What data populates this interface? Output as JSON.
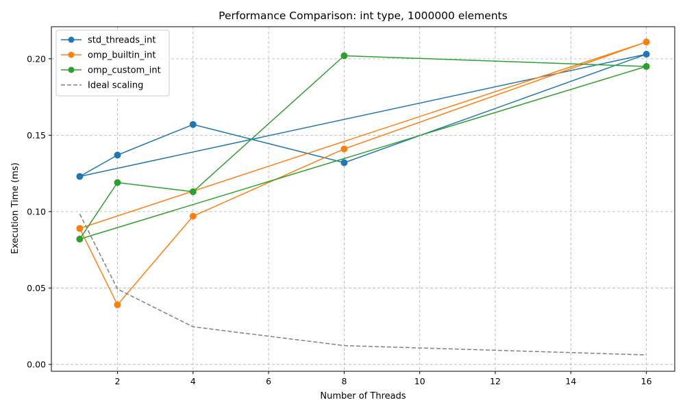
{
  "chart_data": {
    "type": "line",
    "title": "Performance Comparison: int type, 1000000 elements",
    "xlabel": "Number of Threads",
    "ylabel": "Execution Time (ms)",
    "xlim": [
      0.25,
      16.75
    ],
    "ylim": [
      -0.0045,
      0.221
    ],
    "xticks": [
      2,
      4,
      6,
      8,
      10,
      12,
      14,
      16
    ],
    "yticks": [
      0.0,
      0.05,
      0.1,
      0.15,
      0.2
    ],
    "ytick_labels": [
      "0.00",
      "0.05",
      "0.10",
      "0.15",
      "0.20"
    ],
    "grid": true,
    "legend_position": "upper-left",
    "series": [
      {
        "name": "std_threads_int",
        "color": "#1f77b4",
        "style": "solid",
        "marker": "circle",
        "x": [
          1,
          2,
          4,
          8,
          16,
          1,
          2,
          4,
          8,
          16
        ],
        "y": [
          0.123,
          0.137,
          0.157,
          0.132,
          0.203,
          0.123,
          0.137,
          0.157,
          0.132,
          0.203
        ]
      },
      {
        "name": "omp_builtin_int",
        "color": "#ff7f0e",
        "style": "solid",
        "marker": "circle",
        "x": [
          1,
          2,
          4,
          8,
          16,
          1,
          2,
          4,
          8,
          16
        ],
        "y": [
          0.089,
          0.039,
          0.097,
          0.141,
          0.211,
          0.089,
          0.039,
          0.097,
          0.141,
          0.211
        ]
      },
      {
        "name": "omp_custom_int",
        "color": "#2ca02c",
        "style": "solid",
        "marker": "circle",
        "x": [
          1,
          2,
          4,
          8,
          16,
          1,
          2,
          4,
          8,
          16
        ],
        "y": [
          0.082,
          0.119,
          0.113,
          0.202,
          0.195,
          0.082,
          0.119,
          0.113,
          0.202,
          0.195
        ]
      },
      {
        "name": "Ideal scaling",
        "color": "#808080",
        "style": "dashed",
        "marker": "none",
        "x": [
          1,
          2,
          4,
          8,
          16
        ],
        "y": [
          0.0985,
          0.0493,
          0.0246,
          0.0123,
          0.0062
        ]
      }
    ]
  }
}
